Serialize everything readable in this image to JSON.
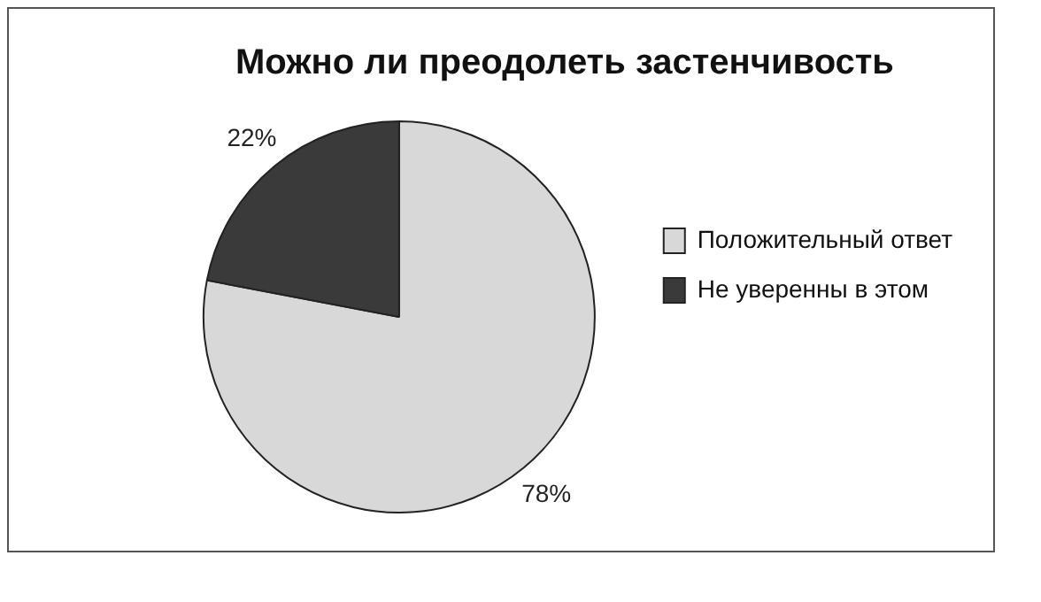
{
  "chart_data": {
    "type": "pie",
    "title": "Можно ли преодолеть застенчивость",
    "categories": [
      "Положительный ответ",
      "Не уверенны в этом"
    ],
    "values": [
      78,
      22
    ],
    "colors": [
      "#d8d8d8",
      "#3a3a3a"
    ],
    "value_labels": [
      "78%",
      "22%"
    ],
    "legend": "right"
  }
}
